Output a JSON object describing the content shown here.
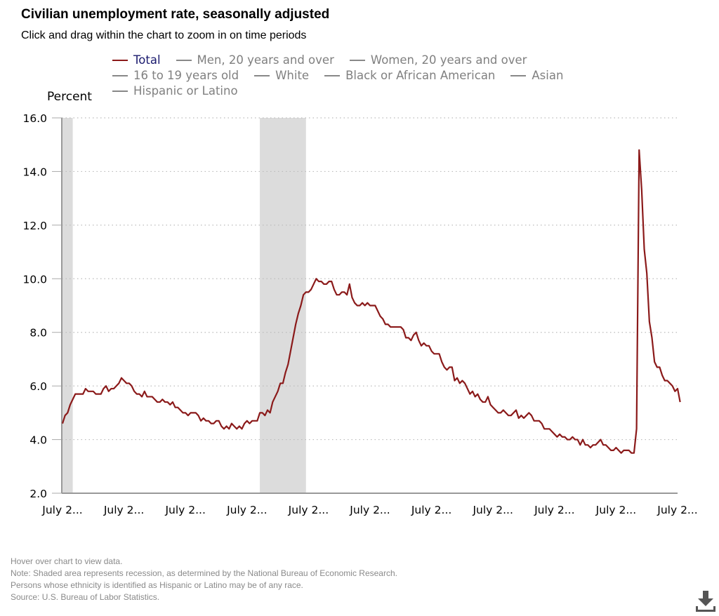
{
  "header": {
    "title": "Civilian unemployment rate, seasonally adjusted",
    "subtitle": "Click and drag within the chart to zoom in on time periods"
  },
  "legend": {
    "rows": [
      [
        {
          "label": "Total",
          "active": true
        },
        {
          "label": "Men, 20 years and over",
          "active": false
        },
        {
          "label": "Women, 20 years and over",
          "active": false
        }
      ],
      [
        {
          "label": "16 to 19 years old",
          "active": false
        },
        {
          "label": "White",
          "active": false
        },
        {
          "label": "Black or African American",
          "active": false
        },
        {
          "label": "Asian",
          "active": false
        }
      ],
      [
        {
          "label": "Hispanic or Latino",
          "active": false
        }
      ]
    ]
  },
  "notes": [
    "Hover over chart to view data.",
    "Note: Shaded area represents recession, as determined by the National Bureau of Economic Research.",
    "Persons whose ethnicity is identified as Hispanic or Latino may be of any race.",
    "Source: U.S. Bureau of Labor Statistics."
  ],
  "download_icon": "download-icon",
  "colors": {
    "series": "#8b1a1a",
    "recession": "#dcdcdc",
    "grid": "#bbbbbb",
    "axis": "#999999"
  },
  "chart_data": {
    "type": "line",
    "title": "Civilian unemployment rate, seasonally adjusted",
    "ylabel": "Percent",
    "xlabel": "",
    "ylim": [
      2.0,
      16.0
    ],
    "yticks": [
      "2.0",
      "4.0",
      "6.0",
      "8.0",
      "10.0",
      "12.0",
      "14.0",
      "16.0"
    ],
    "xticks": [
      "July 2...",
      "July 2...",
      "July 2...",
      "July 2...",
      "July 2...",
      "July 2...",
      "July 2...",
      "July 2...",
      "July 2...",
      "July 2...",
      "July 2..."
    ],
    "x_start": "2001-07",
    "x_end": "2021-07",
    "x_frequency": "monthly",
    "grid": true,
    "legend_position": "top",
    "recessions": [
      {
        "start": "2001-03",
        "end": "2001-11"
      },
      {
        "start": "2007-12",
        "end": "2009-06"
      }
    ],
    "series": [
      {
        "name": "Total",
        "values": [
          4.6,
          4.9,
          5.0,
          5.3,
          5.5,
          5.7,
          5.7,
          5.7,
          5.7,
          5.9,
          5.8,
          5.8,
          5.8,
          5.7,
          5.7,
          5.7,
          5.9,
          6.0,
          5.8,
          5.9,
          5.9,
          6.0,
          6.1,
          6.3,
          6.2,
          6.1,
          6.1,
          6.0,
          5.8,
          5.7,
          5.7,
          5.6,
          5.8,
          5.6,
          5.6,
          5.6,
          5.5,
          5.4,
          5.4,
          5.5,
          5.4,
          5.4,
          5.3,
          5.4,
          5.2,
          5.2,
          5.1,
          5.0,
          5.0,
          4.9,
          5.0,
          5.0,
          5.0,
          4.9,
          4.7,
          4.8,
          4.7,
          4.7,
          4.6,
          4.6,
          4.7,
          4.7,
          4.5,
          4.4,
          4.5,
          4.4,
          4.6,
          4.5,
          4.4,
          4.5,
          4.4,
          4.6,
          4.7,
          4.6,
          4.7,
          4.7,
          4.7,
          5.0,
          5.0,
          4.9,
          5.1,
          5.0,
          5.4,
          5.6,
          5.8,
          6.1,
          6.1,
          6.5,
          6.8,
          7.3,
          7.8,
          8.3,
          8.7,
          9.0,
          9.4,
          9.5,
          9.5,
          9.6,
          9.8,
          10.0,
          9.9,
          9.9,
          9.8,
          9.8,
          9.9,
          9.9,
          9.6,
          9.4,
          9.4,
          9.5,
          9.5,
          9.4,
          9.8,
          9.3,
          9.1,
          9.0,
          9.0,
          9.1,
          9.0,
          9.1,
          9.0,
          9.0,
          9.0,
          8.8,
          8.6,
          8.5,
          8.3,
          8.3,
          8.2,
          8.2,
          8.2,
          8.2,
          8.2,
          8.1,
          7.8,
          7.8,
          7.7,
          7.9,
          8.0,
          7.7,
          7.5,
          7.6,
          7.5,
          7.5,
          7.3,
          7.2,
          7.2,
          7.2,
          6.9,
          6.7,
          6.6,
          6.7,
          6.7,
          6.2,
          6.3,
          6.1,
          6.2,
          6.1,
          5.9,
          5.7,
          5.8,
          5.6,
          5.7,
          5.5,
          5.4,
          5.4,
          5.6,
          5.3,
          5.2,
          5.1,
          5.0,
          5.0,
          5.1,
          5.0,
          4.9,
          4.9,
          5.0,
          5.1,
          4.8,
          4.9,
          4.8,
          4.9,
          5.0,
          4.9,
          4.7,
          4.7,
          4.7,
          4.6,
          4.4,
          4.4,
          4.4,
          4.3,
          4.2,
          4.1,
          4.2,
          4.1,
          4.1,
          4.0,
          4.0,
          4.1,
          4.0,
          4.0,
          3.8,
          4.0,
          3.8,
          3.8,
          3.7,
          3.8,
          3.8,
          3.9,
          4.0,
          3.8,
          3.8,
          3.7,
          3.6,
          3.6,
          3.7,
          3.6,
          3.5,
          3.6,
          3.6,
          3.6,
          3.5,
          3.5,
          4.4,
          14.8,
          13.3,
          11.1,
          10.2,
          8.4,
          7.8,
          6.9,
          6.7,
          6.7,
          6.4,
          6.2,
          6.2,
          6.1,
          6.0,
          5.8,
          5.9,
          5.4
        ]
      }
    ]
  }
}
